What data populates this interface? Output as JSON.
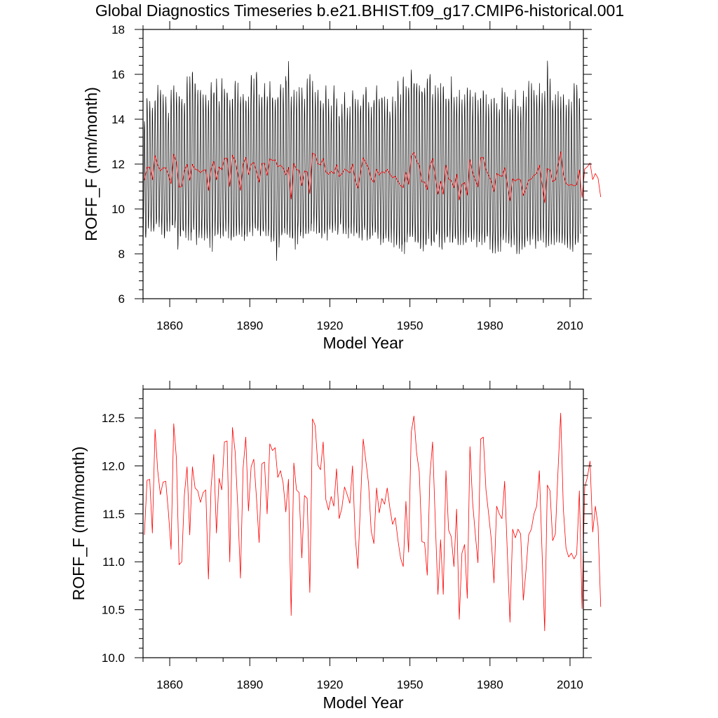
{
  "title": "Global Diagnostics Timeseries b.e21.BHIST.f09_g17.CMIP6-historical.001",
  "colors": {
    "monthly_line": "#000000",
    "annual_line": "#ff0000",
    "axis": "#000000",
    "background": "#ffffff"
  },
  "chart_data": [
    {
      "type": "line",
      "title": "Global Diagnostics Timeseries b.e21.BHIST.f09_g17.CMIP6-historical.001",
      "xlabel": "Model Year",
      "ylabel": "ROFF_F (mm/month)",
      "xlim": [
        1850,
        2015
      ],
      "ylim": [
        6,
        18
      ],
      "xticks": [
        1860,
        1890,
        1920,
        1950,
        1980,
        2010
      ],
      "xtick_labels": [
        "1860",
        "1890",
        "1920",
        "1950",
        "1980",
        "2010"
      ],
      "yticks": [
        6,
        8,
        10,
        12,
        14,
        16,
        18
      ],
      "ytick_labels": [
        "6",
        "8",
        "10",
        "12",
        "14",
        "16",
        "18"
      ],
      "grid": false,
      "series": [
        {
          "name": "monthly",
          "color": "#000000",
          "start_year": 1850,
          "values_per_year": 12,
          "annual_cycle_offsets": [
            -2.3,
            -1.9,
            -1.1,
            0.2,
            1.6,
            2.6,
            3.0,
            2.5,
            1.3,
            -0.2,
            -1.3,
            -2.1
          ],
          "monthly_max_by_year": [
            13.9,
            15.1,
            14.8,
            14.5,
            14.9,
            15.6,
            15.3,
            15.1,
            15.0,
            14.6,
            15.3,
            15.5,
            15.2,
            15.4,
            15.0,
            14.8,
            15.9,
            15.9,
            16.2,
            15.7,
            15.3,
            15.5,
            15.1,
            15.3,
            15.1,
            16.1,
            15.5,
            15.8,
            15.0,
            16.0,
            15.6,
            15.3,
            15.2,
            15.1,
            15.7,
            15.7,
            15.0,
            15.5,
            15.1,
            15.0,
            16.2,
            15.8,
            16.1,
            15.1,
            15.2,
            15.6,
            15.3,
            15.9,
            15.3,
            15.2,
            15.3,
            15.6,
            15.4,
            16.1,
            16.6,
            15.0,
            15.3,
            15.4,
            15.6,
            15.4,
            14.9,
            15.8,
            16.0,
            15.7,
            15.2,
            15.3,
            15.0,
            14.8,
            15.6,
            14.9,
            14.6,
            15.5,
            15.1,
            14.4,
            14.7,
            15.2,
            14.5,
            14.6,
            15.5,
            14.9,
            14.9,
            14.6,
            15.1,
            15.6,
            15.0,
            14.8,
            15.1,
            15.5,
            14.9,
            15.2,
            15.0,
            14.9,
            14.5,
            15.0,
            14.8,
            15.7,
            15.1,
            16.0,
            15.6,
            15.4,
            16.2,
            16.0,
            15.8,
            15.5,
            15.6,
            15.7,
            15.8,
            16.0,
            15.3,
            15.5,
            15.4,
            15.6,
            15.7,
            15.2,
            15.3,
            15.9,
            15.2,
            15.0,
            15.3,
            14.9,
            15.1,
            15.4,
            15.3,
            15.0,
            15.2,
            15.0,
            15.2,
            15.6,
            15.1,
            14.8,
            14.9,
            15.2,
            14.7,
            14.8,
            15.4,
            15.2,
            15.0,
            14.7,
            14.9,
            15.3,
            14.9,
            14.6,
            15.6,
            15.0,
            15.7,
            15.6,
            15.4,
            15.1,
            15.6,
            15.2,
            15.6,
            16.6,
            15.8,
            15.0,
            15.1,
            15.4,
            15.0,
            15.1,
            14.8,
            15.2,
            15.1,
            15.6,
            15.6,
            15.2
          ],
          "monthly_min_by_year": [
            8.5,
            8.7,
            9.2,
            9.0,
            9.1,
            9.4,
            8.9,
            8.8,
            8.7,
            9.0,
            9.3,
            9.0,
            9.1,
            8.2,
            8.5,
            8.9,
            8.7,
            8.6,
            8.8,
            8.9,
            8.4,
            8.6,
            8.7,
            8.6,
            8.7,
            8.1,
            8.8,
            8.9,
            8.6,
            8.7,
            8.5,
            9.0,
            8.7,
            8.6,
            8.8,
            8.9,
            8.8,
            8.5,
            8.7,
            8.6,
            8.9,
            8.8,
            8.9,
            8.7,
            8.8,
            8.6,
            8.8,
            8.8,
            8.3,
            8.4,
            7.7,
            8.6,
            8.9,
            8.8,
            8.6,
            8.7,
            8.5,
            8.2,
            8.8,
            8.7,
            8.9,
            8.9,
            9.0,
            9.1,
            9.0,
            8.9,
            8.7,
            8.8,
            8.9,
            8.6,
            8.9,
            8.9,
            8.8,
            9.0,
            9.0,
            8.9,
            8.7,
            8.9,
            8.9,
            8.8,
            8.7,
            8.8,
            8.6,
            8.8,
            8.6,
            8.6,
            8.7,
            8.8,
            8.6,
            8.4,
            8.5,
            8.7,
            8.4,
            8.5,
            8.3,
            8.3,
            8.1,
            8.0,
            8.4,
            8.5,
            8.3,
            8.4,
            8.6,
            8.2,
            8.3,
            8.1,
            8.4,
            8.6,
            8.2,
            8.4,
            8.6,
            8.3,
            8.2,
            8.5,
            8.4,
            8.5,
            8.3,
            8.5,
            8.4,
            8.6,
            8.4,
            8.5,
            8.5,
            8.4,
            8.7,
            8.3,
            8.4,
            8.5,
            8.4,
            8.5,
            8.2,
            7.8,
            8.4,
            8.1,
            8.4,
            8.7,
            8.5,
            8.3,
            8.6,
            8.4,
            8.0,
            8.4,
            8.2,
            8.3,
            8.2,
            8.4,
            8.5,
            8.1,
            8.4,
            8.6,
            8.3,
            8.2,
            8.3,
            8.6,
            8.4,
            8.3,
            8.5,
            8.3,
            8.4,
            8.2,
            8.2,
            8.1,
            8.5,
            8.5
          ]
        },
        {
          "name": "annual mean",
          "color": "#ff0000",
          "start_year": 1850,
          "values": [
            11.28,
            11.85,
            11.86,
            11.3,
            12.38,
            11.95,
            11.7,
            11.83,
            11.84,
            11.52,
            11.13,
            12.44,
            12.08,
            10.97,
            11.0,
            11.7,
            11.99,
            11.28,
            11.99,
            11.77,
            11.74,
            11.62,
            11.72,
            11.75,
            10.82,
            11.78,
            12.12,
            11.3,
            11.87,
            11.75,
            12.25,
            12.26,
            11.0,
            12.4,
            12.15,
            11.57,
            10.83,
            11.98,
            12.3,
            11.53,
            11.99,
            12.07,
            11.67,
            11.2,
            12.02,
            12.04,
            11.5,
            12.23,
            12.16,
            12.19,
            11.88,
            11.95,
            11.82,
            11.52,
            11.86,
            10.44,
            12.03,
            11.75,
            11.72,
            11.04,
            11.69,
            11.66,
            10.68,
            12.49,
            12.42,
            12.01,
            11.96,
            12.25,
            11.65,
            11.54,
            11.68,
            11.58,
            11.97,
            11.45,
            11.56,
            11.78,
            11.7,
            11.61,
            12.0,
            11.27,
            10.93,
            11.63,
            12.28,
            12.05,
            11.82,
            11.32,
            11.19,
            11.77,
            11.51,
            11.66,
            11.6,
            11.77,
            11.56,
            11.39,
            11.46,
            11.23,
            11.04,
            10.95,
            11.63,
            11.1,
            12.35,
            12.52,
            12.14,
            11.94,
            11.21,
            11.2,
            10.86,
            11.9,
            12.25,
            11.43,
            10.66,
            11.23,
            10.66,
            11.95,
            11.33,
            11.26,
            10.95,
            11.55,
            10.4,
            11.09,
            11.18,
            10.62,
            12.2,
            11.62,
            11.29,
            10.99,
            12.28,
            12.3,
            11.75,
            11.5,
            11.23,
            10.78,
            11.58,
            11.5,
            11.45,
            11.84,
            11.1,
            10.37,
            11.34,
            11.25,
            11.34,
            11.29,
            10.6,
            10.91,
            11.28,
            11.34,
            11.5,
            11.58,
            11.95,
            11.12,
            10.28,
            11.8,
            11.74,
            11.22,
            11.29,
            11.95,
            12.55,
            11.55,
            11.14,
            11.05,
            11.09,
            11.03,
            11.08,
            11.74,
            10.51,
            11.78,
            11.88,
            12.05,
            11.31,
            11.58,
            11.37,
            10.53
          ]
        }
      ]
    },
    {
      "type": "line",
      "title": "",
      "xlabel": "Model Year",
      "ylabel": "ROFF_F (mm/month)",
      "xlim": [
        1850,
        2015
      ],
      "ylim": [
        10.0,
        12.8
      ],
      "xticks": [
        1860,
        1890,
        1920,
        1950,
        1980,
        2010
      ],
      "xtick_labels": [
        "1860",
        "1890",
        "1920",
        "1950",
        "1980",
        "2010"
      ],
      "yticks": [
        10.0,
        10.5,
        11.0,
        11.5,
        12.0,
        12.5
      ],
      "ytick_labels": [
        "10.0",
        "10.5",
        "11.0",
        "11.5",
        "12.0",
        "12.5"
      ],
      "grid": false,
      "series": [
        {
          "name": "annual mean",
          "color": "#ff0000",
          "start_year": 1850,
          "values": [
            11.28,
            11.85,
            11.86,
            11.3,
            12.38,
            11.95,
            11.7,
            11.83,
            11.84,
            11.52,
            11.13,
            12.44,
            12.08,
            10.97,
            11.0,
            11.7,
            11.99,
            11.28,
            11.99,
            11.77,
            11.74,
            11.62,
            11.72,
            11.75,
            10.82,
            11.78,
            12.12,
            11.3,
            11.87,
            11.75,
            12.25,
            12.26,
            11.0,
            12.4,
            12.15,
            11.57,
            10.83,
            11.98,
            12.3,
            11.53,
            11.99,
            12.07,
            11.67,
            11.2,
            12.02,
            12.04,
            11.5,
            12.23,
            12.16,
            12.19,
            11.88,
            11.95,
            11.82,
            11.52,
            11.86,
            10.44,
            12.03,
            11.75,
            11.72,
            11.04,
            11.69,
            11.66,
            10.68,
            12.49,
            12.42,
            12.01,
            11.96,
            12.25,
            11.65,
            11.54,
            11.68,
            11.58,
            11.97,
            11.45,
            11.56,
            11.78,
            11.7,
            11.61,
            12.0,
            11.27,
            10.93,
            11.63,
            12.28,
            12.05,
            11.82,
            11.32,
            11.19,
            11.77,
            11.51,
            11.66,
            11.6,
            11.77,
            11.56,
            11.39,
            11.46,
            11.23,
            11.04,
            10.95,
            11.63,
            11.1,
            12.35,
            12.52,
            12.14,
            11.94,
            11.21,
            11.2,
            10.86,
            11.9,
            12.25,
            11.43,
            10.66,
            11.23,
            10.66,
            11.95,
            11.33,
            11.26,
            10.95,
            11.55,
            10.4,
            11.09,
            11.18,
            10.62,
            12.2,
            11.62,
            11.29,
            10.99,
            12.28,
            12.3,
            11.75,
            11.5,
            11.23,
            10.78,
            11.58,
            11.5,
            11.45,
            11.84,
            11.1,
            10.37,
            11.34,
            11.25,
            11.34,
            11.29,
            10.6,
            10.91,
            11.28,
            11.34,
            11.5,
            11.58,
            11.95,
            11.12,
            10.28,
            11.8,
            11.74,
            11.22,
            11.29,
            11.95,
            12.55,
            11.55,
            11.14,
            11.05,
            11.09,
            11.03,
            11.08,
            11.74,
            10.51,
            11.78,
            11.88,
            12.05,
            11.31,
            11.58,
            11.37,
            10.53
          ]
        }
      ]
    }
  ]
}
